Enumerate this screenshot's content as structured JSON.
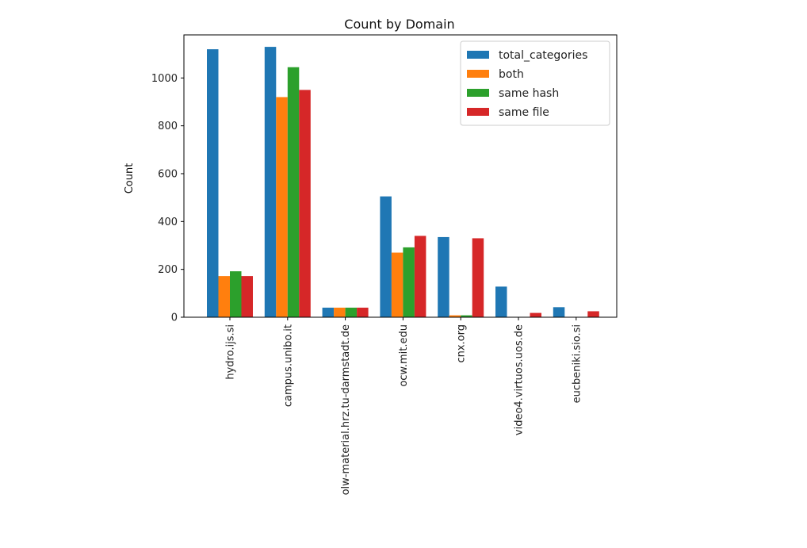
{
  "chart_data": {
    "type": "bar",
    "title": "Count by Domain",
    "xlabel": "",
    "ylabel": "Count",
    "ylim": [
      0,
      1180
    ],
    "yticks": [
      0,
      200,
      400,
      600,
      800,
      1000
    ],
    "grid": false,
    "legend_position": "top-right",
    "categories": [
      "hydro.ijs.si",
      "campus.unibo.it",
      "olw-material.hrz.tu-darmstadt.de",
      "ocw.mit.edu",
      "cnx.org",
      "video4.virtuos.uos.de",
      "eucbeniki.sio.si"
    ],
    "series": [
      {
        "name": "total_categories",
        "color": "#1f77b4",
        "values": [
          1120,
          1130,
          40,
          505,
          335,
          128,
          42
        ]
      },
      {
        "name": "both",
        "color": "#ff7f0e",
        "values": [
          172,
          920,
          40,
          270,
          8,
          0,
          0
        ]
      },
      {
        "name": "same hash",
        "color": "#2ca02c",
        "values": [
          192,
          1045,
          40,
          292,
          8,
          0,
          0
        ]
      },
      {
        "name": "same file",
        "color": "#d62728",
        "values": [
          172,
          950,
          40,
          340,
          330,
          18,
          25
        ]
      }
    ]
  }
}
